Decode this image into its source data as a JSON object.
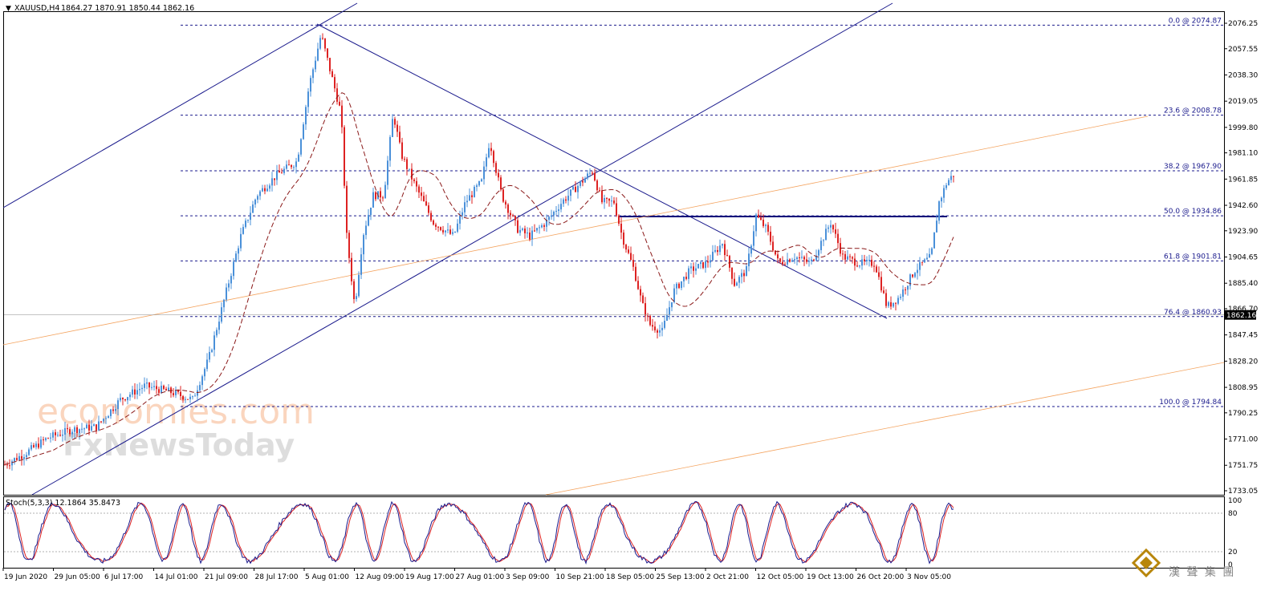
{
  "header": {
    "arrow": "▼",
    "symbol": "XAUUSD,H4",
    "ohlc": "1864.27 1870.91 1850.44 1862.16"
  },
  "price_axis": {
    "labels": [
      "2076.25",
      "2057.55",
      "2038.30",
      "2019.05",
      "1999.80",
      "1981.10",
      "1961.85",
      "1942.60",
      "1923.90",
      "1904.65",
      "1885.40",
      "1866.70",
      "1847.45",
      "1828.20",
      "1808.95",
      "1790.25",
      "1771.00",
      "1751.75",
      "1733.05"
    ],
    "current_price": "1862.16"
  },
  "fibonacci": [
    {
      "label": "0.0 @ 2074.87",
      "price": 2074.87
    },
    {
      "label": "23.6 @ 2008.78",
      "price": 2008.78
    },
    {
      "label": "38.2 @ 1967.90",
      "price": 1967.9
    },
    {
      "label": "50.0 @ 1934.86",
      "price": 1934.86
    },
    {
      "label": "61.8 @ 1901.81",
      "price": 1901.81
    },
    {
      "label": "76.4 @ 1860.93",
      "price": 1860.93
    },
    {
      "label": "100.0 @ 1794.84",
      "price": 1794.84
    }
  ],
  "stochastic": {
    "label": "Stoch(5,3,3) 12.1864 35.8473",
    "levels": [
      "100",
      "80",
      "20",
      "0"
    ]
  },
  "time_axis": {
    "labels": [
      "19 Jun 2020",
      "29 Jun 05:00",
      "6 Jul 17:00",
      "14 Jul 01:00",
      "21 Jul 09:00",
      "28 Jul 17:00",
      "5 Aug 01:00",
      "12 Aug 09:00",
      "19 Aug 17:00",
      "27 Aug 01:00",
      "3 Sep 09:00",
      "10 Sep 21:00",
      "18 Sep 05:00",
      "25 Sep 13:00",
      "2 Oct 21:00",
      "12 Oct 05:00",
      "19 Oct 13:00",
      "26 Oct 20:00",
      "3 Nov 05:00"
    ]
  },
  "watermark": {
    "line1": "economies.com",
    "line2": "FxNewsToday",
    "brand": "漢 聲 集 團"
  },
  "colors": {
    "bull": "#4a90d9",
    "bear": "#dd2222",
    "trend": "#1a1a8c",
    "fib": "#1a1a8c",
    "ma": "#8b1a1a",
    "orange": "#f4a460",
    "stoch_main": "#1a1a8c",
    "stoch_signal": "#dd2222"
  }
}
